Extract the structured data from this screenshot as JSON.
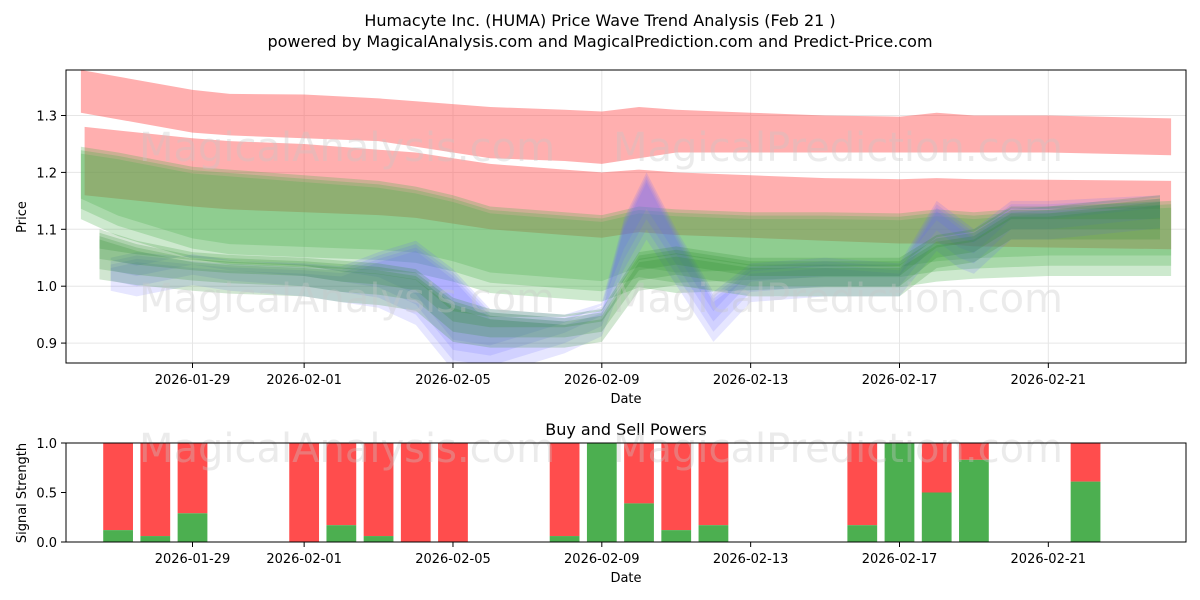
{
  "chart_data": [
    {
      "type": "area",
      "title_line1": "Humacyte Inc. (HUMA) Price Wave Trend Analysis (Feb 21 )",
      "title_line2": "powered by MagicalAnalysis.com and MagicalPrediction.com and Predict-Price.com",
      "xlabel": "Date",
      "ylabel": "Price",
      "xlim": [
        -3.4,
        26.7
      ],
      "ylim": [
        0.865,
        1.38
      ],
      "x_tick_labels": [
        "2026-01-29",
        "2026-02-01",
        "2026-02-05",
        "2026-02-09",
        "2026-02-13",
        "2026-02-17",
        "2026-02-21"
      ],
      "x_tick_positions": [
        0,
        3,
        7,
        11,
        15,
        19,
        23
      ],
      "y_tick_labels": [
        "0.9",
        "1.0",
        "1.1",
        "1.2",
        "1.3"
      ],
      "y_tick_values": [
        0.9,
        1.0,
        1.1,
        1.2,
        1.3
      ],
      "watermark": "MagicalAnalysis.com MagicalPrediction.com",
      "series": [
        {
          "name": "red-upper-band",
          "color": "#ff4d4d",
          "x": [
            -3.0,
            0,
            1,
            3,
            5,
            6,
            7,
            8,
            10,
            11,
            12,
            13,
            15,
            17,
            19,
            20,
            21,
            23,
            26.3
          ],
          "upper": [
            1.38,
            1.345,
            1.338,
            1.337,
            1.33,
            1.325,
            1.32,
            1.315,
            1.31,
            1.307,
            1.315,
            1.31,
            1.305,
            1.3,
            1.298,
            1.305,
            1.3,
            1.3,
            1.295
          ],
          "lower": [
            1.305,
            1.27,
            1.265,
            1.26,
            1.255,
            1.245,
            1.235,
            1.225,
            1.22,
            1.215,
            1.225,
            1.235,
            1.235,
            1.235,
            1.235,
            1.235,
            1.235,
            1.235,
            1.23
          ]
        },
        {
          "name": "red-lower-band",
          "color": "#ff4d4d",
          "x": [
            -2.9,
            0,
            1,
            3,
            5,
            6,
            7,
            8,
            10,
            11,
            12,
            13,
            15,
            17,
            19,
            20,
            21,
            23,
            26.3
          ],
          "upper": [
            1.28,
            1.26,
            1.255,
            1.25,
            1.24,
            1.235,
            1.225,
            1.215,
            1.205,
            1.2,
            1.205,
            1.2,
            1.195,
            1.19,
            1.188,
            1.19,
            1.188,
            1.187,
            1.185
          ],
          "lower": [
            1.16,
            1.14,
            1.135,
            1.13,
            1.125,
            1.12,
            1.11,
            1.1,
            1.09,
            1.085,
            1.095,
            1.09,
            1.085,
            1.08,
            1.075,
            1.075,
            1.07,
            1.068,
            1.065
          ]
        },
        {
          "name": "green-band",
          "color": "#4caf50",
          "x": [
            -3.0,
            -2.0,
            0,
            1,
            3,
            5,
            6,
            7,
            8,
            10,
            11,
            12,
            13,
            15,
            17,
            19,
            20,
            21,
            23,
            26.3
          ],
          "upper": [
            1.245,
            1.235,
            1.21,
            1.205,
            1.195,
            1.185,
            1.175,
            1.16,
            1.14,
            1.13,
            1.125,
            1.14,
            1.135,
            1.13,
            1.13,
            1.128,
            1.135,
            1.13,
            1.14,
            1.15
          ],
          "lower": [
            1.13,
            1.1,
            1.06,
            1.05,
            1.045,
            1.04,
            1.035,
            1.02,
            1.0,
            0.99,
            0.985,
            1.01,
            1.0,
            1.005,
            1.01,
            1.01,
            1.02,
            1.025,
            1.03,
            1.03
          ]
        },
        {
          "name": "blue-wave",
          "color": "#6666ff",
          "x": [
            -2.2,
            -1.5,
            0,
            1,
            3,
            4,
            5,
            6,
            7,
            8,
            10,
            11,
            11.6,
            12.2,
            13,
            14,
            15,
            17,
            19,
            20,
            20.6,
            21,
            22,
            23,
            26
          ],
          "upper": [
            1.05,
            1.06,
            1.05,
            1.045,
            1.04,
            1.035,
            1.06,
            1.08,
            1.03,
            0.96,
            0.95,
            0.97,
            1.12,
            1.2,
            1.1,
            0.99,
            1.04,
            1.05,
            1.04,
            1.15,
            1.12,
            1.1,
            1.15,
            1.15,
            1.16
          ],
          "lower": [
            1.01,
            1.0,
            1.02,
            1.01,
            1.0,
            0.99,
            0.98,
            0.95,
            0.87,
            0.86,
            0.9,
            0.93,
            1.03,
            1.1,
            1.02,
            0.92,
            0.99,
            1.0,
            1.0,
            1.08,
            1.05,
            1.04,
            1.1,
            1.1,
            1.12
          ]
        },
        {
          "name": "green-wave",
          "color": "#2e8b2e",
          "x": [
            -2.5,
            -1.5,
            0,
            1,
            3,
            4,
            5,
            6,
            7,
            8,
            10,
            11,
            12,
            13,
            14,
            15,
            17,
            19,
            20,
            21,
            22,
            23,
            26
          ],
          "upper": [
            1.1,
            1.08,
            1.06,
            1.055,
            1.05,
            1.045,
            1.04,
            1.03,
            0.98,
            0.96,
            0.95,
            0.96,
            1.06,
            1.07,
            1.06,
            1.05,
            1.05,
            1.05,
            1.09,
            1.1,
            1.14,
            1.14,
            1.16
          ],
          "lower": [
            1.03,
            1.02,
            1.01,
            1.005,
            1.0,
            0.99,
            0.985,
            0.975,
            0.92,
            0.91,
            0.91,
            0.92,
            1.01,
            1.02,
            1.01,
            1.0,
            1.0,
            1.0,
            1.05,
            1.06,
            1.1,
            1.1,
            1.1
          ]
        }
      ]
    },
    {
      "type": "bar",
      "title": "Buy and Sell Powers",
      "xlabel": "Date",
      "ylabel": "Signal Strength",
      "xlim": [
        -3.4,
        26.7
      ],
      "ylim": [
        0,
        1
      ],
      "y_tick_labels": [
        "0.0",
        "0.5",
        "1.0"
      ],
      "y_tick_values": [
        0.0,
        0.5,
        1.0
      ],
      "x_tick_labels": [
        "2026-01-29",
        "2026-02-01",
        "2026-02-05",
        "2026-02-09",
        "2026-02-13",
        "2026-02-17",
        "2026-02-21"
      ],
      "x_tick_positions": [
        0,
        3,
        7,
        11,
        15,
        19,
        23
      ],
      "buy_color": "#4caf50",
      "sell_color": "#ff4d4d",
      "bars": [
        {
          "x": -2,
          "buy": 0.12
        },
        {
          "x": -1,
          "buy": 0.06
        },
        {
          "x": 0,
          "buy": 0.29
        },
        {
          "x": 3,
          "buy": 0.0
        },
        {
          "x": 4,
          "buy": 0.17
        },
        {
          "x": 5,
          "buy": 0.06
        },
        {
          "x": 6,
          "buy": 0.0
        },
        {
          "x": 7,
          "buy": 0.0
        },
        {
          "x": 10,
          "buy": 0.06
        },
        {
          "x": 11,
          "buy": 1.0
        },
        {
          "x": 12,
          "buy": 0.39
        },
        {
          "x": 13,
          "buy": 0.12
        },
        {
          "x": 14,
          "buy": 0.17
        },
        {
          "x": 18,
          "buy": 0.17
        },
        {
          "x": 19,
          "buy": 1.0
        },
        {
          "x": 20,
          "buy": 0.5
        },
        {
          "x": 21,
          "buy": 0.83
        },
        {
          "x": 24,
          "buy": 0.61
        }
      ]
    }
  ]
}
